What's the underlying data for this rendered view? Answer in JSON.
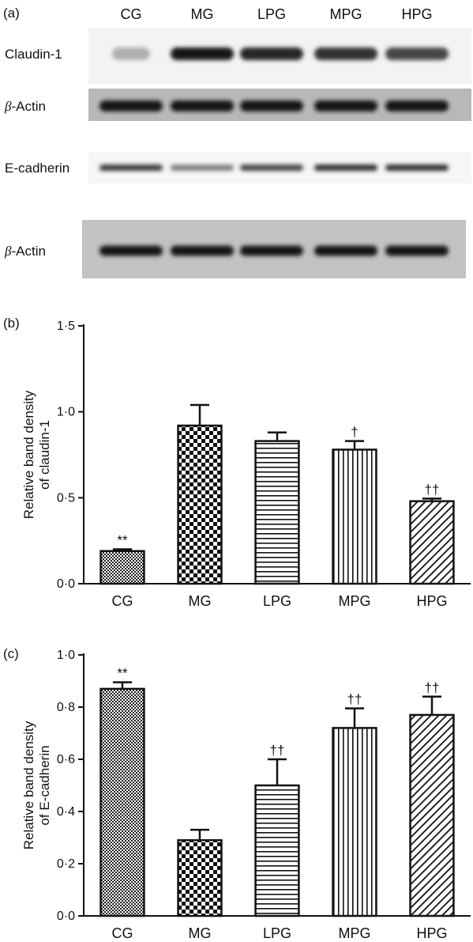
{
  "panels": {
    "a": {
      "label": "(a)"
    },
    "b": {
      "label": "(b)"
    },
    "c": {
      "label": "(c)"
    }
  },
  "blot": {
    "lanes": [
      "CG",
      "MG",
      "LPG",
      "MPG",
      "HPG"
    ],
    "rows": [
      {
        "label": "Claudin-1",
        "intensity": [
          0.35,
          1.0,
          0.95,
          0.9,
          0.8
        ]
      },
      {
        "label": "β-Actin",
        "intensity": [
          1.0,
          1.0,
          1.0,
          1.0,
          1.0
        ]
      },
      {
        "label": "E-cadherin",
        "intensity": [
          0.85,
          0.55,
          0.8,
          0.9,
          0.9
        ]
      },
      {
        "label": "β-Actin",
        "intensity": [
          1.0,
          1.0,
          1.0,
          1.0,
          1.0
        ]
      }
    ]
  },
  "chart_data": [
    {
      "type": "bar",
      "panel": "b",
      "categories": [
        "CG",
        "MG",
        "LPG",
        "MPG",
        "HPG"
      ],
      "values": [
        0.19,
        0.92,
        0.83,
        0.78,
        0.48
      ],
      "errors": [
        0.01,
        0.12,
        0.05,
        0.05,
        0.015
      ],
      "significance": [
        "**",
        "",
        "",
        "†",
        "††"
      ],
      "patterns": [
        "checker-fine",
        "checker-coarse",
        "horizontal",
        "vertical",
        "diagonal"
      ],
      "ylabel_line1": "Relative band density",
      "ylabel_line2": "of claudin-1",
      "ylim": [
        0,
        1.5
      ],
      "yticks": [
        0.0,
        0.5,
        1.0,
        1.5
      ],
      "ytick_labels": [
        "0·0",
        "0·5",
        "1·0",
        "1·5"
      ]
    },
    {
      "type": "bar",
      "panel": "c",
      "categories": [
        "CG",
        "MG",
        "LPG",
        "MPG",
        "HPG"
      ],
      "values": [
        0.87,
        0.29,
        0.5,
        0.72,
        0.77
      ],
      "errors": [
        0.025,
        0.04,
        0.1,
        0.075,
        0.07
      ],
      "significance": [
        "**",
        "",
        "††",
        "††",
        "††"
      ],
      "patterns": [
        "checker-fine",
        "checker-coarse",
        "horizontal",
        "vertical",
        "diagonal"
      ],
      "ylabel_line1": "Relative band density",
      "ylabel_line2": "of E-cadherin",
      "ylim": [
        0,
        1.0
      ],
      "yticks": [
        0.0,
        0.2,
        0.4,
        0.6,
        0.8,
        1.0
      ],
      "ytick_labels": [
        "0·0",
        "0·2",
        "0·4",
        "0·6",
        "0·8",
        "1·0"
      ]
    }
  ]
}
